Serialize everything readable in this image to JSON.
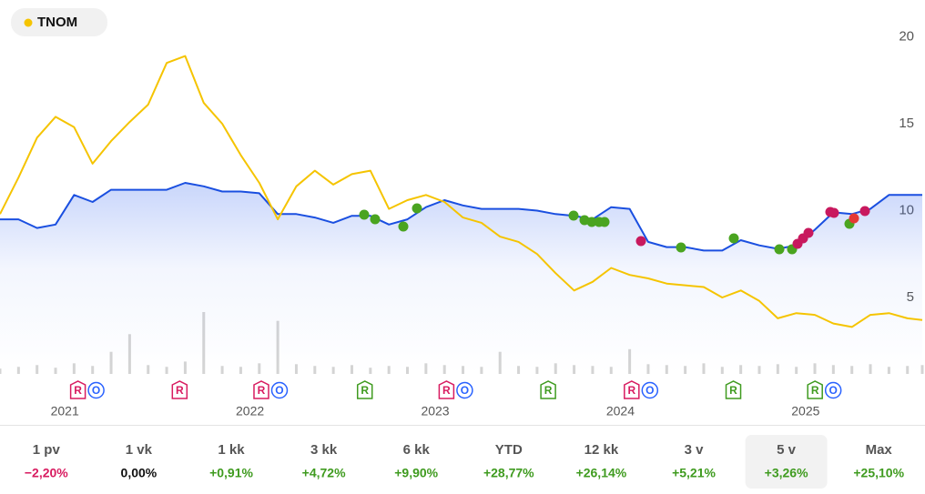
{
  "chart_data": {
    "type": "line",
    "legend": {
      "label": "TNOM",
      "color": "#f5c400"
    },
    "x": [
      2020.65,
      2020.75,
      2020.85,
      2020.95,
      2021.05,
      2021.15,
      2021.25,
      2021.35,
      2021.45,
      2021.55,
      2021.65,
      2021.75,
      2021.85,
      2021.95,
      2022.05,
      2022.15,
      2022.25,
      2022.35,
      2022.45,
      2022.55,
      2022.65,
      2022.75,
      2022.85,
      2022.95,
      2023.05,
      2023.15,
      2023.25,
      2023.35,
      2023.45,
      2023.55,
      2023.65,
      2023.75,
      2023.85,
      2023.95,
      2024.05,
      2024.15,
      2024.25,
      2024.35,
      2024.45,
      2024.55,
      2024.65,
      2024.75,
      2024.85,
      2024.95,
      2025.05,
      2025.15,
      2025.25,
      2025.35,
      2025.45,
      2025.55,
      2025.63
    ],
    "series": [
      {
        "color": "#1a4fe0",
        "values": [
          9.5,
          9.5,
          9.0,
          9.2,
          10.9,
          10.5,
          11.2,
          11.2,
          11.2,
          11.2,
          11.6,
          11.4,
          11.1,
          11.1,
          11.0,
          9.8,
          9.8,
          9.6,
          9.3,
          9.7,
          9.7,
          9.2,
          9.5,
          10.2,
          10.6,
          10.3,
          10.1,
          10.1,
          10.1,
          10.0,
          9.8,
          9.7,
          9.5,
          10.2,
          10.1,
          8.2,
          7.9,
          7.9,
          7.7,
          7.7,
          8.3,
          8.0,
          7.8,
          8.0,
          8.9,
          9.9,
          9.8,
          10.1,
          10.9,
          10.9,
          10.9
        ]
      },
      {
        "name": "TNOM",
        "color": "#f5c400",
        "values": [
          9.8,
          11.9,
          14.2,
          15.4,
          14.8,
          12.7,
          14.0,
          15.1,
          16.1,
          18.5,
          18.9,
          16.2,
          15.0,
          13.2,
          11.6,
          9.5,
          11.4,
          12.3,
          11.5,
          12.1,
          12.3,
          10.1,
          10.6,
          10.9,
          10.5,
          9.6,
          9.3,
          8.5,
          8.2,
          7.5,
          6.4,
          5.4,
          5.9,
          6.7,
          6.3,
          6.1,
          5.8,
          5.7,
          5.6,
          5.0,
          5.4,
          4.8,
          3.8,
          4.1,
          4.0,
          3.5,
          3.3,
          4.0,
          4.1,
          3.8,
          3.7
        ]
      }
    ],
    "volume": [
      6,
      8,
      10,
      7,
      12,
      9,
      25,
      45,
      10,
      8,
      14,
      70,
      9,
      8,
      12,
      60,
      11,
      9,
      8,
      10,
      7,
      9,
      8,
      12,
      10,
      9,
      8,
      25,
      9,
      8,
      12,
      10,
      9,
      8,
      28,
      11,
      10,
      9,
      12,
      8,
      10,
      9,
      11,
      8,
      12,
      10,
      9,
      11,
      8,
      9,
      10
    ],
    "xlim": [
      2020.65,
      2025.63
    ],
    "xticks": [
      2021,
      2022,
      2023,
      2024,
      2025
    ],
    "ylim": [
      0.6,
      21.6
    ],
    "yticks": [
      5,
      10,
      15,
      20
    ],
    "badges": [
      {
        "x": 2021.12,
        "items": [
          {
            "label": "R",
            "color": "#d81b60"
          },
          {
            "label": "O",
            "color": "#2962ff"
          }
        ]
      },
      {
        "x": 2021.62,
        "items": [
          {
            "label": "R",
            "color": "#d81b60"
          }
        ]
      },
      {
        "x": 2022.11,
        "items": [
          {
            "label": "R",
            "color": "#d81b60"
          },
          {
            "label": "O",
            "color": "#2962ff"
          }
        ]
      },
      {
        "x": 2022.62,
        "items": [
          {
            "label": "R",
            "color": "#3f9b1f"
          }
        ]
      },
      {
        "x": 2023.11,
        "items": [
          {
            "label": "R",
            "color": "#d81b60"
          },
          {
            "label": "O",
            "color": "#2962ff"
          }
        ]
      },
      {
        "x": 2023.61,
        "items": [
          {
            "label": "R",
            "color": "#3f9b1f"
          }
        ]
      },
      {
        "x": 2024.11,
        "items": [
          {
            "label": "R",
            "color": "#d81b60"
          },
          {
            "label": "O",
            "color": "#2962ff"
          }
        ]
      },
      {
        "x": 2024.61,
        "items": [
          {
            "label": "R",
            "color": "#3f9b1f"
          }
        ]
      },
      {
        "x": 2025.1,
        "items": [
          {
            "label": "R",
            "color": "#3f9b1f"
          },
          {
            "label": "O",
            "color": "#2962ff"
          }
        ]
      }
    ]
  },
  "periods": {
    "selected": 8,
    "items": [
      {
        "label": "1 pv",
        "change": "−2,20%",
        "color": "#d81b60"
      },
      {
        "label": "1 vk",
        "change": "0,00%",
        "color": "#111111"
      },
      {
        "label": "1 kk",
        "change": "+0,91%",
        "color": "#3f9b1f"
      },
      {
        "label": "3 kk",
        "change": "+4,72%",
        "color": "#3f9b1f"
      },
      {
        "label": "6 kk",
        "change": "+9,90%",
        "color": "#3f9b1f"
      },
      {
        "label": "YTD",
        "change": "+28,77%",
        "color": "#3f9b1f"
      },
      {
        "label": "12 kk",
        "change": "+26,14%",
        "color": "#3f9b1f"
      },
      {
        "label": "3 v",
        "change": "+5,21%",
        "color": "#3f9b1f"
      },
      {
        "label": "5 v",
        "change": "+3,26%",
        "color": "#3f9b1f"
      },
      {
        "label": "Max",
        "change": "+25,10%",
        "color": "#3f9b1f"
      }
    ]
  }
}
